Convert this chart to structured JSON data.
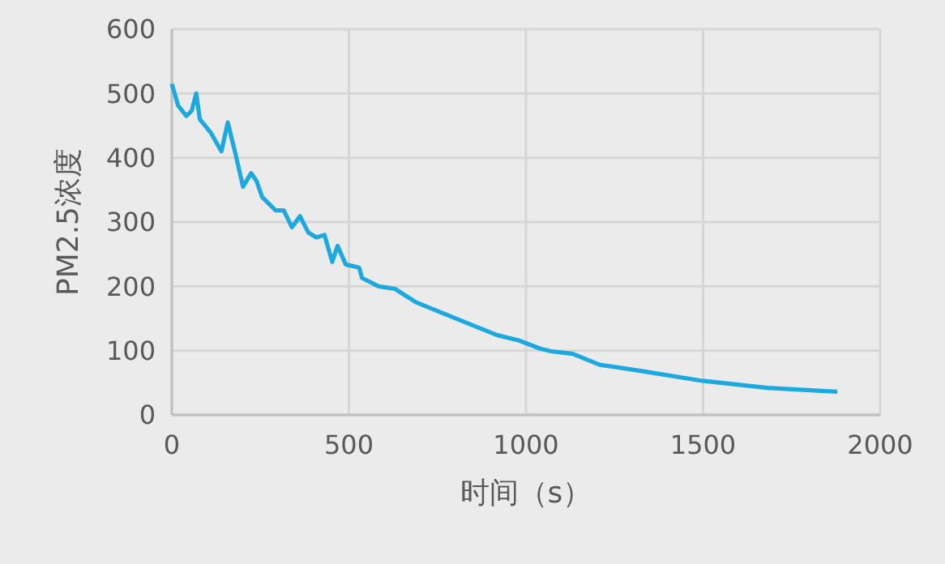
{
  "chart_data": {
    "type": "line",
    "xlabel": "时间（s）",
    "ylabel": "PM2.5浓度",
    "xlim": [
      0,
      2000
    ],
    "xticks": [
      0,
      500,
      1000,
      1500,
      2000
    ],
    "ylim": [
      0,
      600
    ],
    "yticks": [
      0,
      100,
      200,
      300,
      400,
      500,
      600
    ],
    "grid": true,
    "marker": "none",
    "line_style": "solid",
    "series": [
      {
        "color": "#1ba9df",
        "x": [
          0,
          18,
          41,
          56,
          69,
          79,
          110,
          140,
          158,
          178,
          201,
          224,
          239,
          255,
          293,
          316,
          339,
          362,
          385,
          408,
          431,
          453,
          468,
          491,
          529,
          537,
          584,
          630,
          690,
          766,
          842,
          919,
          979,
          1040,
          1071,
          1132,
          1208,
          1330,
          1498,
          1681,
          1879
        ],
        "values": [
          515,
          481,
          465,
          473,
          500,
          460,
          439,
          410,
          455,
          410,
          355,
          376,
          364,
          339,
          318,
          318,
          292,
          309,
          284,
          276,
          280,
          238,
          263,
          234,
          229,
          213,
          200,
          196,
          175,
          158,
          141,
          124,
          116,
          103,
          99,
          95,
          78,
          68,
          53,
          42,
          36
        ]
      }
    ]
  }
}
